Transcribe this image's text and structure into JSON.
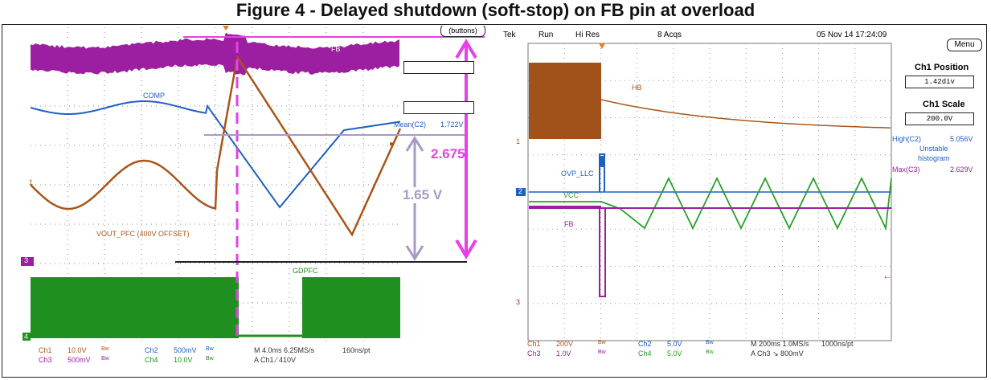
{
  "page_title": "Figure 4 - Delayed shutdown (soft-stop) on FB pin at overload",
  "left": {
    "buttons_label": "(buttons)",
    "traces": {
      "fb": "FB",
      "comp": "COMP",
      "vout": "VOUT_PFC (400V OFFSET)",
      "gdpfc": "GDPFC"
    },
    "mean_label": "Mean(C2)",
    "mean_value": "1.722V",
    "ann_2675": "2.675",
    "ann_165": "1.65 V",
    "markers": {
      "ch1": "1",
      "ch3": "3",
      "ch4": "4"
    },
    "readout": {
      "ch1": "Ch1",
      "ch1_v": "10.0V",
      "ch3": "Ch3",
      "ch3_v": "500mV",
      "bw": "Bw",
      "ch2": "Ch2",
      "ch2_v": "500mV",
      "ch4": "Ch4",
      "ch4_v": "10.0V",
      "time": "M 4.0ms 6.25MS/s",
      "trig": "A Ch1 ⁄ 410V",
      "pt": "160ns/pt"
    }
  },
  "right": {
    "header": {
      "brand": "Tek",
      "state": "Run",
      "mode": "Hi Res",
      "acqs": "8 Acqs",
      "timestamp": "05 Nov 14 17:24:09"
    },
    "menu_button": "Menu",
    "ch1_position_title": "Ch1 Position",
    "ch1_position_value": "1.42div",
    "ch1_scale_title": "Ch1 Scale",
    "ch1_scale_value": "200.0V",
    "high_label": "High(C2)",
    "high_value": "5.056V",
    "unstable": "Unstable",
    "histogram": "histogram",
    "max_label": "Max(C3)",
    "max_value": "2.629V",
    "traces": {
      "hb": "HB",
      "ovp": "OVP_LLC",
      "vcc": "VCC",
      "fb": "FB"
    },
    "markers": {
      "ch1": "1",
      "ch2": "2",
      "ch3": "3"
    },
    "readout": {
      "ch1": "Ch1",
      "ch1_v": "200V",
      "ch3": "Ch3",
      "ch3_v": "1.0V",
      "bw": "Bw",
      "ch2": "Ch2",
      "ch2_v": "5.0V",
      "ch4": "Ch4",
      "ch4_v": "5.0V",
      "time": "M 200ms 1.0MS/s",
      "trig": "A Ch3 ↘ 800mV",
      "pt": "1000ns/pt"
    }
  },
  "colors": {
    "fb": "#9b1fa0",
    "comp": "#1f5fc4",
    "vout": "#a8551a",
    "gd": "#1f9a1f",
    "vcc": "#2aa02a",
    "ovp": "#1f5fc4",
    "hb": "#a8551a",
    "annot": "#e640e6",
    "lavender": "#a898c8",
    "marker": "#c0392b"
  }
}
